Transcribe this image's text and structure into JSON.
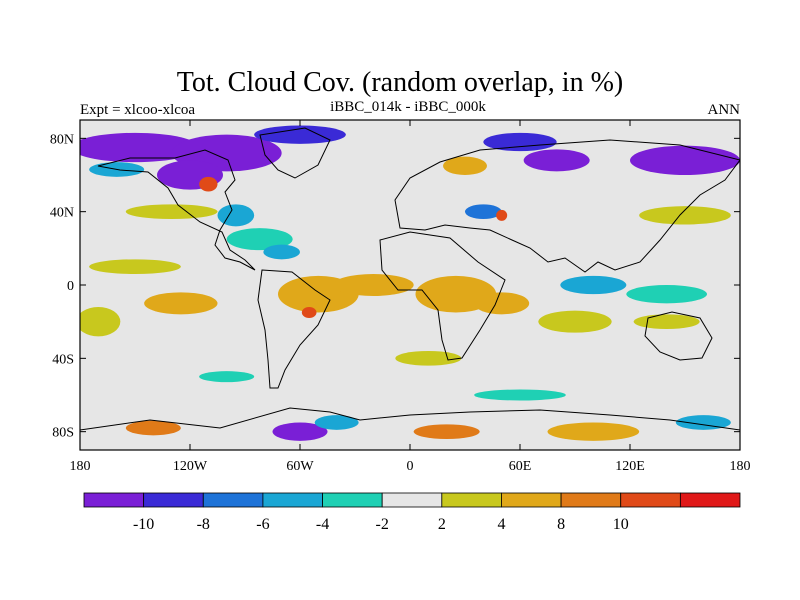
{
  "chart_data": {
    "type": "heatmap",
    "title": "Tot. Cloud Cov. (random overlap, in %)",
    "subtitle_left": "Expt = xlcoo-xlcoa",
    "subtitle_center": "iBBC_014k - iBBC_000k",
    "subtitle_right": "ANN",
    "x_ticks": [
      "180",
      "120W",
      "60W",
      "0",
      "60E",
      "120E",
      "180"
    ],
    "y_ticks": [
      "80N",
      "40N",
      "0",
      "40S",
      "80S"
    ],
    "xlim": [
      -180,
      180
    ],
    "ylim": [
      -90,
      90
    ],
    "x_tick_values": [
      -180,
      -120,
      -60,
      0,
      60,
      120,
      180
    ],
    "y_tick_values": [
      80,
      40,
      0,
      -40,
      -80
    ],
    "colorbar": {
      "colors": [
        "#7a1fd6",
        "#3a2ad6",
        "#1e73d8",
        "#1aa6d4",
        "#1fd0b4",
        "#e6e6e6",
        "#c8c81e",
        "#e0a81a",
        "#e07a18",
        "#e04a18",
        "#e01818"
      ],
      "labels": [
        "-10",
        "-8",
        "-6",
        "-4",
        "-2",
        "2",
        "4",
        "8",
        "10"
      ]
    },
    "regions": [
      {
        "lon": -150,
        "lat": 75,
        "value": -11,
        "rx": 35,
        "ry": 8
      },
      {
        "lon": -100,
        "lat": 72,
        "value": -11,
        "rx": 30,
        "ry": 10
      },
      {
        "lon": -60,
        "lat": 82,
        "value": -9,
        "rx": 25,
        "ry": 5
      },
      {
        "lon": -120,
        "lat": 60,
        "value": -11,
        "rx": 18,
        "ry": 8
      },
      {
        "lon": -110,
        "lat": 55,
        "value": 11,
        "rx": 5,
        "ry": 4
      },
      {
        "lon": -160,
        "lat": 63,
        "value": -5,
        "rx": 15,
        "ry": 4
      },
      {
        "lon": 60,
        "lat": 78,
        "value": -9,
        "rx": 20,
        "ry": 5
      },
      {
        "lon": 80,
        "lat": 68,
        "value": -11,
        "rx": 18,
        "ry": 6
      },
      {
        "lon": 150,
        "lat": 68,
        "value": -11,
        "rx": 30,
        "ry": 8
      },
      {
        "lon": 30,
        "lat": 65,
        "value": 5,
        "rx": 12,
        "ry": 5
      },
      {
        "lon": -130,
        "lat": 40,
        "value": 3,
        "rx": 25,
        "ry": 4
      },
      {
        "lon": -95,
        "lat": 38,
        "value": -5,
        "rx": 10,
        "ry": 6
      },
      {
        "lon": -82,
        "lat": 25,
        "value": -3,
        "rx": 18,
        "ry": 6
      },
      {
        "lon": -70,
        "lat": 18,
        "value": -5,
        "rx": 10,
        "ry": 4
      },
      {
        "lon": 40,
        "lat": 40,
        "value": -7,
        "rx": 10,
        "ry": 4
      },
      {
        "lon": 50,
        "lat": 38,
        "value": 11,
        "rx": 3,
        "ry": 3
      },
      {
        "lon": 150,
        "lat": 38,
        "value": 3,
        "rx": 25,
        "ry": 5
      },
      {
        "lon": -150,
        "lat": 10,
        "value": 3,
        "rx": 25,
        "ry": 4
      },
      {
        "lon": -170,
        "lat": -20,
        "value": 3,
        "rx": 12,
        "ry": 8
      },
      {
        "lon": -125,
        "lat": -10,
        "value": 5,
        "rx": 20,
        "ry": 6
      },
      {
        "lon": -50,
        "lat": -5,
        "value": 7,
        "rx": 22,
        "ry": 10
      },
      {
        "lon": -55,
        "lat": -15,
        "value": 11,
        "rx": 4,
        "ry": 3
      },
      {
        "lon": -20,
        "lat": 0,
        "value": 5,
        "rx": 22,
        "ry": 6
      },
      {
        "lon": 25,
        "lat": -5,
        "value": 7,
        "rx": 22,
        "ry": 10
      },
      {
        "lon": 50,
        "lat": -10,
        "value": 5,
        "rx": 15,
        "ry": 6
      },
      {
        "lon": 90,
        "lat": -20,
        "value": 3,
        "rx": 20,
        "ry": 6
      },
      {
        "lon": 100,
        "lat": 0,
        "value": -5,
        "rx": 18,
        "ry": 5
      },
      {
        "lon": 140,
        "lat": -5,
        "value": -3,
        "rx": 22,
        "ry": 5
      },
      {
        "lon": 140,
        "lat": -20,
        "value": 3,
        "rx": 18,
        "ry": 4
      },
      {
        "lon": 10,
        "lat": -40,
        "value": 3,
        "rx": 18,
        "ry": 4
      },
      {
        "lon": -100,
        "lat": -50,
        "value": -3,
        "rx": 15,
        "ry": 3
      },
      {
        "lon": 60,
        "lat": -60,
        "value": -3,
        "rx": 25,
        "ry": 3
      },
      {
        "lon": -140,
        "lat": -78,
        "value": 9,
        "rx": 15,
        "ry": 4
      },
      {
        "lon": -60,
        "lat": -80,
        "value": -11,
        "rx": 15,
        "ry": 5
      },
      {
        "lon": -40,
        "lat": -75,
        "value": -5,
        "rx": 12,
        "ry": 4
      },
      {
        "lon": 20,
        "lat": -80,
        "value": 9,
        "rx": 18,
        "ry": 4
      },
      {
        "lon": 100,
        "lat": -80,
        "value": 7,
        "rx": 25,
        "ry": 5
      },
      {
        "lon": 160,
        "lat": -75,
        "value": -5,
        "rx": 15,
        "ry": 4
      }
    ]
  }
}
